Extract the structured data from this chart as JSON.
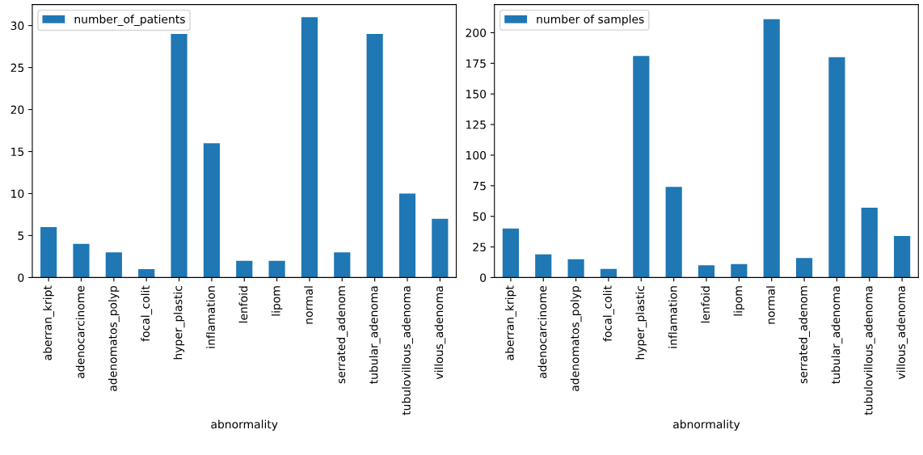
{
  "chart_data": [
    {
      "type": "bar",
      "categories": [
        "aberran_kript",
        "adenocarcinome",
        "adenomatos_polyp",
        "focal_colit",
        "hyper_plastic",
        "inflamation",
        "lenfoid",
        "lipom",
        "normal",
        "serrated_adenom",
        "tubular_adenoma",
        "tubulovillous_adenoma",
        "villous_adenoma"
      ],
      "xlabel": "abnormality",
      "series": [
        {
          "name": "number_of_patients",
          "color": "#1f77b4",
          "values": [
            6,
            4,
            3,
            1,
            29,
            16,
            2,
            2,
            31,
            3,
            29,
            10,
            7
          ]
        }
      ],
      "ylim": [
        0,
        32.5
      ],
      "yticks": [
        0,
        5,
        10,
        15,
        20,
        25,
        30
      ],
      "legend": "top left",
      "grid": false
    },
    {
      "type": "bar",
      "categories": [
        "aberran_kript",
        "adenocarcinome",
        "adenomatos_polyp",
        "focal_colit",
        "hyper_plastic",
        "inflamation",
        "lenfoid",
        "lipom",
        "normal",
        "serrated_adenom",
        "tubular_adenoma",
        "tubulovillous_adenoma",
        "villous_adenoma"
      ],
      "xlabel": "abnormality",
      "series": [
        {
          "name": "number of samples",
          "color": "#1f77b4",
          "values": [
            40,
            19,
            15,
            7,
            181,
            74,
            10,
            11,
            211,
            16,
            180,
            57,
            34
          ]
        }
      ],
      "ylim": [
        0,
        223
      ],
      "yticks": [
        0,
        25,
        50,
        75,
        100,
        125,
        150,
        175,
        200
      ],
      "legend": "top left",
      "grid": false
    }
  ]
}
